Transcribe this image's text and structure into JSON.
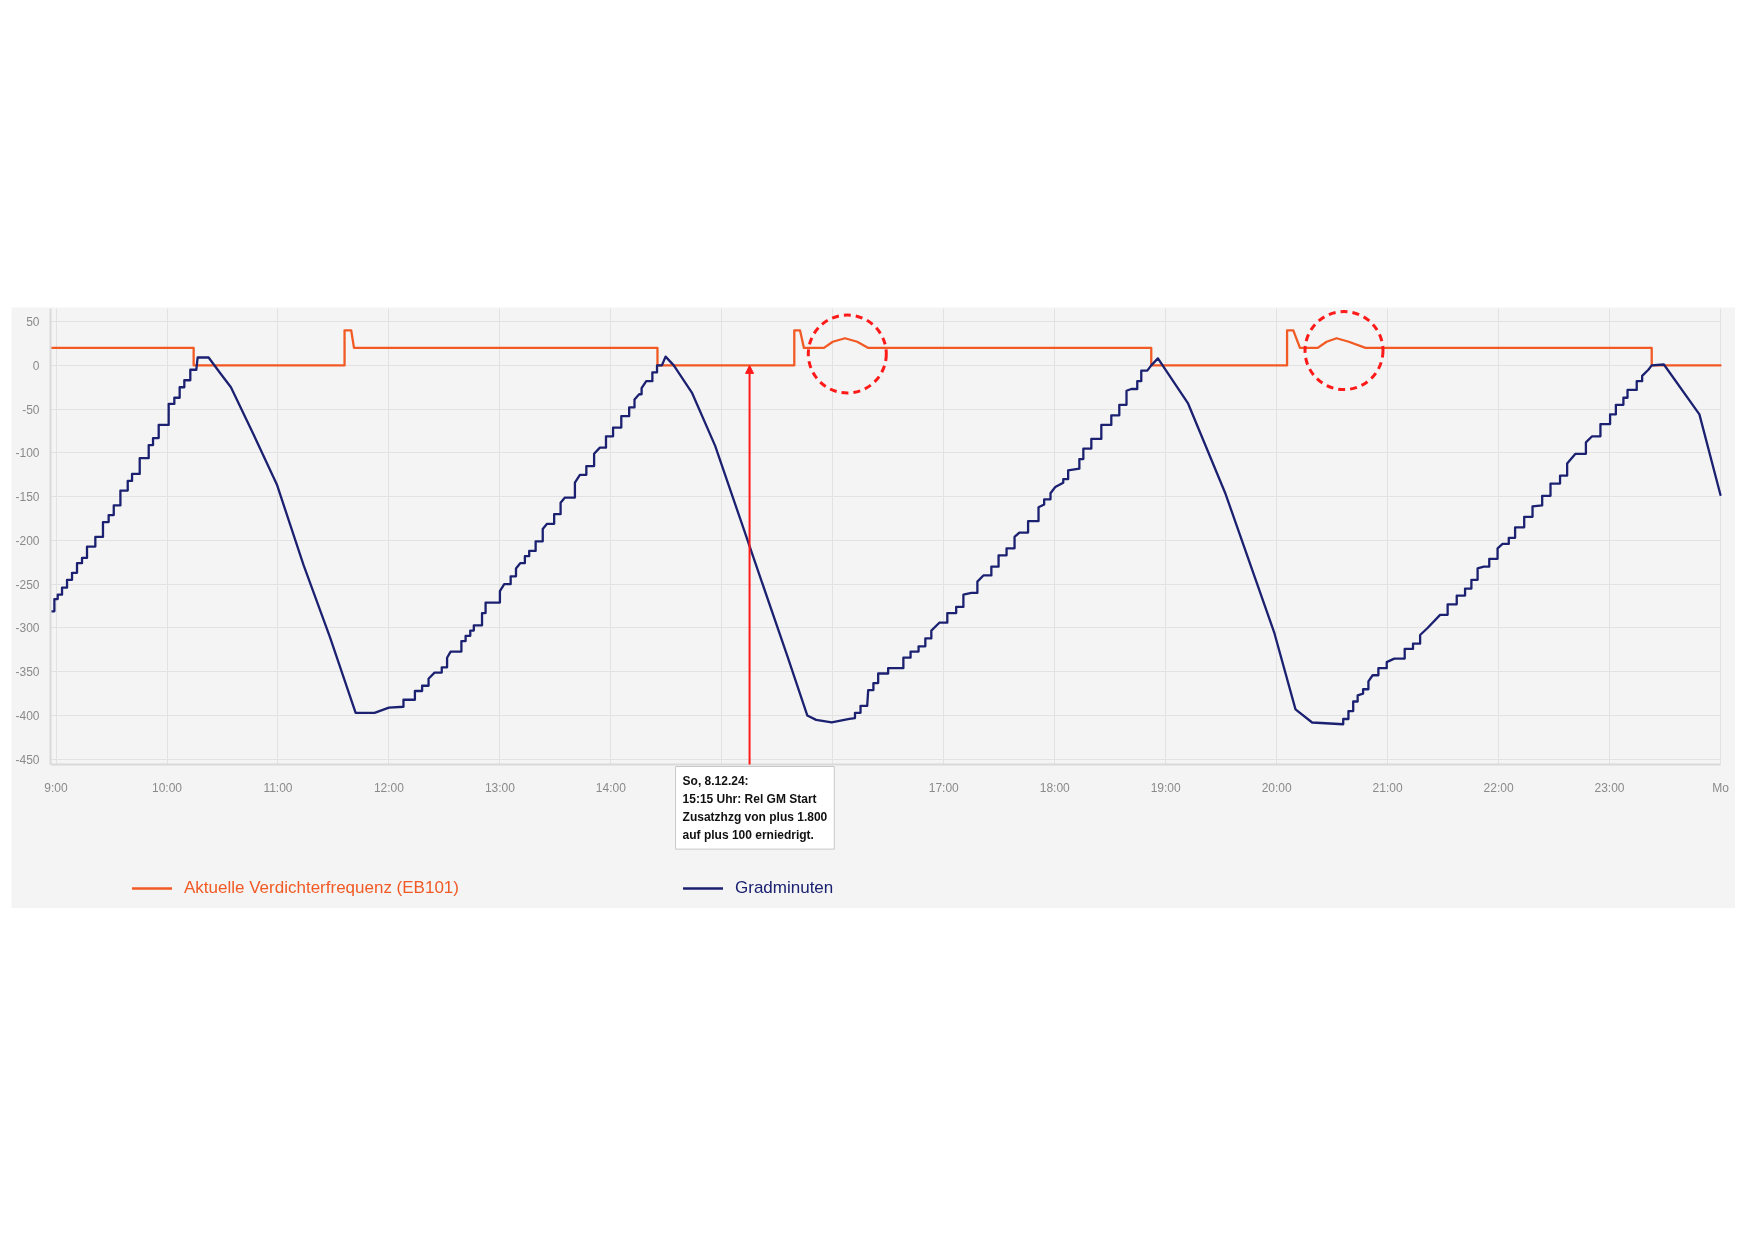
{
  "chart_data": {
    "type": "line",
    "xlim": [
      8.95,
      24.0
    ],
    "ylim": [
      -456,
      65
    ],
    "xticks": [
      {
        "value": 9,
        "label": "9:00"
      },
      {
        "value": 10,
        "label": "10:00"
      },
      {
        "value": 11,
        "label": "11:00"
      },
      {
        "value": 12,
        "label": "12:00"
      },
      {
        "value": 13,
        "label": "13:00"
      },
      {
        "value": 14,
        "label": "14:00"
      },
      {
        "value": 15,
        "label": null
      },
      {
        "value": 16,
        "label": null
      },
      {
        "value": 17,
        "label": "17:00"
      },
      {
        "value": 18,
        "label": "18:00"
      },
      {
        "value": 19,
        "label": "19:00"
      },
      {
        "value": 20,
        "label": "20:00"
      },
      {
        "value": 21,
        "label": "21:00"
      },
      {
        "value": 22,
        "label": "22:00"
      },
      {
        "value": 23,
        "label": "23:00"
      },
      {
        "value": 24,
        "label": "Mo"
      }
    ],
    "yticks": [
      50,
      0,
      -50,
      -100,
      -150,
      -200,
      -250,
      -300,
      -350,
      -400,
      -450
    ],
    "grid": true,
    "legend": "bottom",
    "series": [
      {
        "name": "Aktuelle Verdichterfrequenz (EB101)",
        "color": "#f15a24",
        "x": [
          8.958,
          10.24,
          10.24,
          11.6,
          11.6,
          11.66,
          11.685,
          14.42,
          14.42,
          15.653,
          15.653,
          15.705,
          15.74,
          15.92,
          16.0,
          16.11,
          16.22,
          16.32,
          18.87,
          18.87,
          20.094,
          20.094,
          20.15,
          20.21,
          20.37,
          20.45,
          20.54,
          20.65,
          20.8,
          23.38,
          23.38,
          24.0
        ],
        "values": [
          20,
          20,
          0,
          0,
          40,
          40,
          20,
          20,
          0,
          0,
          40,
          40,
          20,
          20,
          27,
          31,
          27,
          20,
          20,
          0,
          0,
          40,
          40,
          20,
          20,
          27,
          31,
          27,
          20,
          20,
          0,
          0
        ]
      },
      {
        "name": "Gradminuten",
        "color": "#1b2170",
        "x": [
          8.958,
          8.985,
          8.985,
          9.015,
          9.015,
          9.054,
          9.054,
          9.099,
          9.099,
          9.144,
          9.144,
          9.189,
          9.189,
          9.234,
          9.234,
          9.279,
          9.279,
          9.354,
          9.354,
          9.423,
          9.423,
          9.474,
          9.474,
          9.52,
          9.52,
          9.58,
          9.58,
          9.646,
          9.646,
          9.685,
          9.685,
          9.754,
          9.754,
          9.835,
          9.835,
          9.874,
          9.874,
          9.925,
          9.925,
          10.015,
          10.015,
          10.066,
          10.066,
          10.114,
          10.114,
          10.156,
          10.156,
          10.21,
          10.21,
          10.264,
          10.276,
          10.375,
          10.48,
          10.576,
          10.78,
          10.99,
          11.23,
          11.47,
          11.7,
          11.87,
          12.0,
          12.131,
          12.131,
          12.234,
          12.234,
          12.299,
          12.299,
          12.357,
          12.357,
          12.411,
          12.476,
          12.476,
          12.524,
          12.524,
          12.556,
          12.653,
          12.653,
          12.691,
          12.691,
          12.733,
          12.733,
          12.765,
          12.765,
          12.839,
          12.839,
          12.871,
          12.871,
          13.0,
          13.0,
          13.039,
          13.097,
          13.097,
          13.145,
          13.145,
          13.183,
          13.225,
          13.225,
          13.264,
          13.264,
          13.322,
          13.322,
          13.386,
          13.386,
          13.425,
          13.489,
          13.489,
          13.547,
          13.547,
          13.586,
          13.676,
          13.676,
          13.721,
          13.779,
          13.779,
          13.849,
          13.849,
          13.901,
          13.956,
          13.956,
          14.02,
          14.02,
          14.094,
          14.094,
          14.165,
          14.165,
          14.213,
          14.213,
          14.255,
          14.277,
          14.277,
          14.319,
          14.374,
          14.374,
          14.416,
          14.416,
          14.46,
          14.493,
          14.567,
          14.73,
          14.94,
          15.2,
          15.27,
          15.59,
          15.77,
          15.85,
          15.99,
          16.15,
          16.2,
          16.2,
          16.25,
          16.25,
          16.31,
          16.319,
          16.366,
          16.366,
          16.409,
          16.409,
          16.499,
          16.499,
          16.636,
          16.636,
          16.701,
          16.701,
          16.773,
          16.773,
          16.834,
          16.834,
          16.888,
          16.888,
          16.96,
          17.032,
          17.032,
          17.112,
          17.112,
          17.177,
          17.177,
          17.249,
          17.303,
          17.303,
          17.357,
          17.429,
          17.429,
          17.494,
          17.494,
          17.566,
          17.566,
          17.638,
          17.638,
          17.681,
          17.76,
          17.76,
          17.854,
          17.854,
          17.905,
          17.905,
          17.962,
          17.962,
          18.005,
          18.077,
          18.077,
          18.121,
          18.121,
          18.222,
          18.222,
          18.258,
          18.258,
          18.33,
          18.33,
          18.42,
          18.42,
          18.51,
          18.51,
          18.582,
          18.582,
          18.647,
          18.647,
          18.69,
          18.744,
          18.744,
          18.78,
          18.78,
          18.834,
          18.87,
          18.93,
          19.2,
          19.54,
          19.98,
          20.17,
          20.32,
          20.6,
          20.6,
          20.647,
          20.647,
          20.69,
          20.69,
          20.73,
          20.73,
          20.779,
          20.779,
          20.827,
          20.827,
          20.865,
          20.917,
          20.917,
          20.992,
          20.992,
          21.06,
          21.154,
          21.154,
          21.229,
          21.229,
          21.293,
          21.293,
          21.36,
          21.473,
          21.541,
          21.541,
          21.623,
          21.623,
          21.698,
          21.698,
          21.755,
          21.755,
          21.811,
          21.811,
          21.867,
          21.916,
          21.916,
          21.991,
          21.991,
          22.036,
          22.092,
          22.092,
          22.149,
          22.149,
          22.231,
          22.231,
          22.306,
          22.306,
          22.393,
          22.393,
          22.468,
          22.468,
          22.554,
          22.554,
          22.618,
          22.618,
          22.693,
          22.787,
          22.787,
          22.843,
          22.918,
          22.918,
          23.005,
          23.005,
          23.057,
          23.057,
          23.125,
          23.125,
          23.162,
          23.162,
          23.245,
          23.245,
          23.294,
          23.294,
          23.35,
          23.38,
          23.49,
          23.81,
          24.0
        ],
        "values": [
          -281,
          -281,
          -267,
          -267,
          -262,
          -262,
          -254,
          -254,
          -245,
          -245,
          -237,
          -237,
          -226,
          -226,
          -220,
          -220,
          -207,
          -207,
          -196,
          -196,
          -179,
          -179,
          -171,
          -171,
          -160,
          -160,
          -143,
          -143,
          -132,
          -132,
          -124,
          -124,
          -106,
          -106,
          -91,
          -91,
          -83,
          -83,
          -68,
          -68,
          -44,
          -44,
          -37,
          -37,
          -25,
          -25,
          -17,
          -17,
          -5,
          -5,
          9,
          9,
          -9,
          -25,
          -79,
          -136,
          -228,
          -311,
          -397,
          -397,
          -391,
          -390,
          -382,
          -382,
          -372,
          -372,
          -366,
          -366,
          -358,
          -351,
          -351,
          -345,
          -345,
          -334,
          -327,
          -327,
          -315,
          -315,
          -309,
          -309,
          -303,
          -303,
          -297,
          -297,
          -283,
          -283,
          -271,
          -271,
          -258,
          -250,
          -250,
          -241,
          -241,
          -232,
          -226,
          -226,
          -218,
          -218,
          -212,
          -212,
          -201,
          -201,
          -187,
          -181,
          -181,
          -170,
          -170,
          -157,
          -151,
          -151,
          -134,
          -125,
          -125,
          -115,
          -115,
          -101,
          -94,
          -94,
          -81,
          -81,
          -71,
          -71,
          -58,
          -58,
          -48,
          -48,
          -39,
          -33,
          -33,
          -26,
          -18,
          -18,
          -8,
          -8,
          0,
          0,
          10,
          0,
          -31,
          -92,
          -188,
          -214,
          -332,
          -400,
          -405,
          -408,
          -404,
          -403,
          -397,
          -397,
          -389,
          -389,
          -371,
          -371,
          -363,
          -363,
          -352,
          -352,
          -346,
          -346,
          -334,
          -334,
          -327,
          -327,
          -321,
          -321,
          -312,
          -312,
          -303,
          -294,
          -294,
          -283,
          -283,
          -276,
          -276,
          -262,
          -260,
          -260,
          -247,
          -240,
          -240,
          -230,
          -230,
          -217,
          -217,
          -209,
          -209,
          -196,
          -191,
          -191,
          -178,
          -178,
          -162,
          -159,
          -153,
          -153,
          -146,
          -139,
          -134,
          -130,
          -130,
          -120,
          -118,
          -107,
          -107,
          -95,
          -95,
          -84,
          -84,
          -68,
          -68,
          -57,
          -57,
          -45,
          -45,
          -29,
          -27,
          -27,
          -18,
          -18,
          -6,
          -6,
          0,
          8,
          -43,
          -147,
          -306,
          -393,
          -408,
          -410,
          -404,
          -404,
          -395,
          -395,
          -384,
          -384,
          -377,
          -375,
          -370,
          -370,
          -361,
          -354,
          -354,
          -346,
          -346,
          -339,
          -335,
          -335,
          -324,
          -324,
          -318,
          -318,
          -308,
          -300,
          -285,
          -285,
          -273,
          -273,
          -263,
          -263,
          -255,
          -255,
          -245,
          -245,
          -232,
          -230,
          -230,
          -221,
          -221,
          -209,
          -204,
          -204,
          -197,
          -197,
          -185,
          -185,
          -173,
          -173,
          -161,
          -160,
          -149,
          -149,
          -135,
          -135,
          -126,
          -126,
          -112,
          -101,
          -101,
          -88,
          -81,
          -81,
          -67,
          -67,
          -56,
          -56,
          -45,
          -45,
          -37,
          -37,
          -28,
          -28,
          -18,
          -18,
          -12,
          -5,
          0,
          1,
          -56,
          -148
        ]
      }
    ],
    "annotations": [
      {
        "text": "So, 8.12.24:\n15:15 Uhr: Rel GM Start\nZusatzhzg von plus 1.800\nauf plus 100 erniedrigt.",
        "x": 15.25,
        "y": 0
      }
    ]
  }
}
